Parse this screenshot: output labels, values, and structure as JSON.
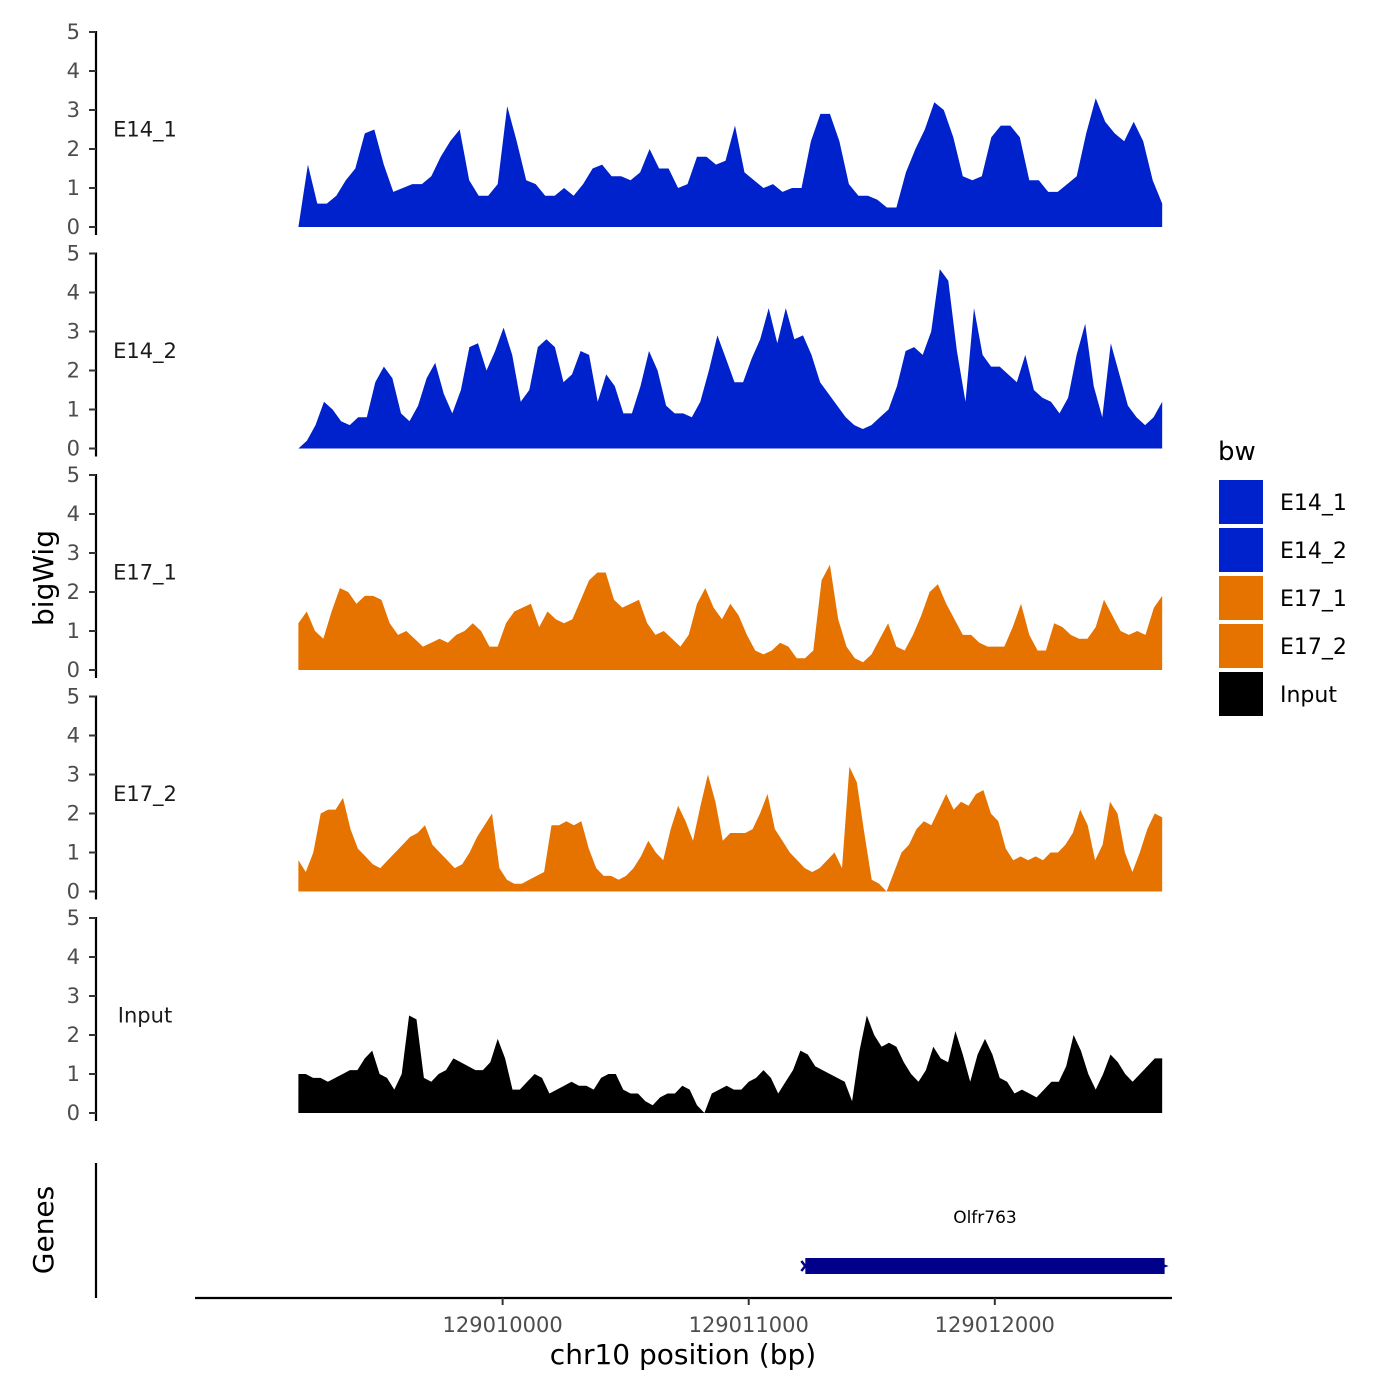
{
  "chart_data": {
    "type": "area",
    "chromosome": "chr10",
    "xlabel": "chr10 position (bp)",
    "ylabel": "bigWig",
    "genes_label": "Genes",
    "xlim": [
      129008750,
      129012720
    ],
    "x_ticks": [
      129010000,
      129011000,
      129012000
    ],
    "y_ticks": [
      0,
      1,
      2,
      3,
      4,
      5
    ],
    "ylim": [
      0,
      5
    ],
    "legend": {
      "title": "bw",
      "placement": "right",
      "entries": [
        {
          "label": "E14_1",
          "color": "#0022CC"
        },
        {
          "label": "E14_2",
          "color": "#0022CC"
        },
        {
          "label": "E17_1",
          "color": "#E67300"
        },
        {
          "label": "E17_2",
          "color": "#E67300"
        },
        {
          "label": "Input",
          "color": "#000000"
        }
      ]
    },
    "tracks": [
      {
        "name": "E14_1",
        "color": "#0022CC",
        "x_start": 129009170,
        "x_end": 129012680,
        "values": [
          0,
          1.6,
          0.6,
          0.6,
          0.8,
          1.2,
          1.5,
          2.4,
          2.5,
          1.6,
          0.9,
          1.0,
          1.1,
          1.1,
          1.3,
          1.8,
          2.2,
          2.5,
          1.2,
          0.8,
          0.8,
          1.1,
          3.1,
          2.2,
          1.2,
          1.1,
          0.8,
          0.8,
          1.0,
          0.8,
          1.1,
          1.5,
          1.6,
          1.3,
          1.3,
          1.2,
          1.4,
          2.0,
          1.5,
          1.5,
          1.0,
          1.1,
          1.8,
          1.8,
          1.6,
          1.7,
          2.6,
          1.4,
          1.2,
          1.0,
          1.1,
          0.9,
          1.0,
          1.0,
          2.2,
          2.9,
          2.9,
          2.2,
          1.1,
          0.8,
          0.8,
          0.7,
          0.5,
          0.5,
          1.4,
          2.0,
          2.5,
          3.2,
          3.0,
          2.3,
          1.3,
          1.2,
          1.3,
          2.3,
          2.6,
          2.6,
          2.3,
          1.2,
          1.2,
          0.9,
          0.9,
          1.1,
          1.3,
          2.4,
          3.3,
          2.7,
          2.4,
          2.2,
          2.7,
          2.2,
          1.2,
          0.6
        ]
      },
      {
        "name": "E14_2",
        "color": "#0022CC",
        "x_start": 129009170,
        "x_end": 129012680,
        "values": [
          0,
          0.2,
          0.6,
          1.2,
          1.0,
          0.7,
          0.6,
          0.8,
          0.8,
          1.7,
          2.1,
          1.8,
          0.9,
          0.7,
          1.1,
          1.8,
          2.2,
          1.4,
          0.9,
          1.5,
          2.6,
          2.7,
          2.0,
          2.5,
          3.1,
          2.4,
          1.2,
          1.5,
          2.6,
          2.8,
          2.6,
          1.7,
          1.9,
          2.5,
          2.4,
          1.2,
          1.9,
          1.6,
          0.9,
          0.9,
          1.6,
          2.5,
          2.0,
          1.1,
          0.9,
          0.9,
          0.8,
          1.2,
          2.0,
          2.9,
          2.3,
          1.7,
          1.7,
          2.3,
          2.8,
          3.6,
          2.7,
          3.6,
          2.8,
          2.9,
          2.4,
          1.7,
          1.4,
          1.1,
          0.8,
          0.6,
          0.5,
          0.6,
          0.8,
          1.0,
          1.6,
          2.5,
          2.6,
          2.4,
          3.0,
          4.6,
          4.3,
          2.5,
          1.2,
          3.6,
          2.4,
          2.1,
          2.1,
          1.9,
          1.7,
          2.4,
          1.5,
          1.3,
          1.2,
          0.9,
          1.3,
          2.4,
          3.2,
          1.6,
          0.8,
          2.7,
          1.9,
          1.1,
          0.8,
          0.6,
          0.8,
          1.2
        ]
      },
      {
        "name": "E17_1",
        "color": "#E67300",
        "x_start": 129009170,
        "x_end": 129012680,
        "values": [
          1.2,
          1.5,
          1.0,
          0.8,
          1.5,
          2.1,
          2.0,
          1.7,
          1.9,
          1.9,
          1.8,
          1.2,
          0.9,
          1.0,
          0.8,
          0.6,
          0.7,
          0.8,
          0.7,
          0.9,
          1.0,
          1.2,
          1.0,
          0.6,
          0.6,
          1.2,
          1.5,
          1.6,
          1.7,
          1.1,
          1.5,
          1.3,
          1.2,
          1.3,
          1.8,
          2.3,
          2.5,
          2.5,
          1.8,
          1.6,
          1.7,
          1.8,
          1.2,
          0.9,
          1.0,
          0.8,
          0.6,
          0.9,
          1.7,
          2.1,
          1.6,
          1.3,
          1.7,
          1.4,
          0.9,
          0.5,
          0.4,
          0.5,
          0.7,
          0.6,
          0.3,
          0.3,
          0.5,
          2.3,
          2.7,
          1.3,
          0.6,
          0.3,
          0.2,
          0.4,
          0.8,
          1.2,
          0.6,
          0.5,
          0.9,
          1.4,
          2.0,
          2.2,
          1.7,
          1.3,
          0.9,
          0.9,
          0.7,
          0.6,
          0.6,
          0.6,
          1.1,
          1.7,
          0.9,
          0.5,
          0.5,
          1.2,
          1.1,
          0.9,
          0.8,
          0.8,
          1.1,
          1.8,
          1.4,
          1.0,
          0.9,
          1.0,
          0.9,
          1.6,
          1.9
        ]
      },
      {
        "name": "E17_2",
        "color": "#E67300",
        "x_start": 129009170,
        "x_end": 129012680,
        "values": [
          0.8,
          0.5,
          1.0,
          2.0,
          2.1,
          2.1,
          2.4,
          1.6,
          1.1,
          0.9,
          0.7,
          0.6,
          0.8,
          1.0,
          1.2,
          1.4,
          1.5,
          1.7,
          1.2,
          1.0,
          0.8,
          0.6,
          0.7,
          1.0,
          1.4,
          1.7,
          2.0,
          0.6,
          0.3,
          0.2,
          0.2,
          0.3,
          0.4,
          0.5,
          1.7,
          1.7,
          1.8,
          1.7,
          1.8,
          1.1,
          0.6,
          0.4,
          0.4,
          0.3,
          0.4,
          0.6,
          0.9,
          1.3,
          1.0,
          0.8,
          1.6,
          2.2,
          1.8,
          1.3,
          2.2,
          3.0,
          2.3,
          1.3,
          1.5,
          1.5,
          1.5,
          1.6,
          2.0,
          2.5,
          1.6,
          1.3,
          1.0,
          0.8,
          0.6,
          0.5,
          0.6,
          0.8,
          1.0,
          0.6,
          3.2,
          2.8,
          1.5,
          0.3,
          0.2,
          0.0,
          0.5,
          1.0,
          1.2,
          1.6,
          1.8,
          1.7,
          2.1,
          2.5,
          2.1,
          2.3,
          2.2,
          2.5,
          2.6,
          2.0,
          1.8,
          1.1,
          0.8,
          0.9,
          0.8,
          0.9,
          0.8,
          1.0,
          1.0,
          1.2,
          1.5,
          2.1,
          1.7,
          0.8,
          1.2,
          2.3,
          2.0,
          1.0,
          0.5,
          1.0,
          1.6,
          2.0,
          1.9
        ]
      },
      {
        "name": "Input",
        "color": "#000000",
        "x_start": 129009170,
        "x_end": 129012680,
        "values": [
          1.0,
          1.0,
          0.9,
          0.9,
          0.8,
          0.9,
          1.0,
          1.1,
          1.1,
          1.4,
          1.6,
          1.0,
          0.9,
          0.6,
          1.0,
          2.5,
          2.4,
          0.9,
          0.8,
          1.0,
          1.1,
          1.4,
          1.3,
          1.2,
          1.1,
          1.1,
          1.3,
          1.9,
          1.4,
          0.6,
          0.6,
          0.8,
          1.0,
          0.9,
          0.5,
          0.6,
          0.7,
          0.8,
          0.7,
          0.7,
          0.6,
          0.9,
          1.0,
          1.0,
          0.6,
          0.5,
          0.5,
          0.3,
          0.2,
          0.4,
          0.5,
          0.5,
          0.7,
          0.6,
          0.2,
          0.0,
          0.5,
          0.6,
          0.7,
          0.6,
          0.6,
          0.8,
          0.9,
          1.1,
          0.9,
          0.5,
          0.8,
          1.1,
          1.6,
          1.5,
          1.2,
          1.1,
          1.0,
          0.9,
          0.8,
          0.3,
          1.6,
          2.5,
          2.0,
          1.7,
          1.8,
          1.7,
          1.3,
          1.0,
          0.8,
          1.1,
          1.7,
          1.4,
          1.3,
          2.1,
          1.5,
          0.8,
          1.5,
          1.9,
          1.5,
          0.9,
          0.8,
          0.5,
          0.6,
          0.5,
          0.4,
          0.6,
          0.8,
          0.8,
          1.2,
          2.0,
          1.6,
          1.0,
          0.6,
          1.0,
          1.5,
          1.3,
          1.0,
          0.8,
          1.0,
          1.2,
          1.4,
          1.4
        ]
      }
    ],
    "genes": [
      {
        "name": "Olfr763",
        "start": 129011230,
        "end": 129012690,
        "strand": "-",
        "color": "#00008B"
      }
    ]
  }
}
